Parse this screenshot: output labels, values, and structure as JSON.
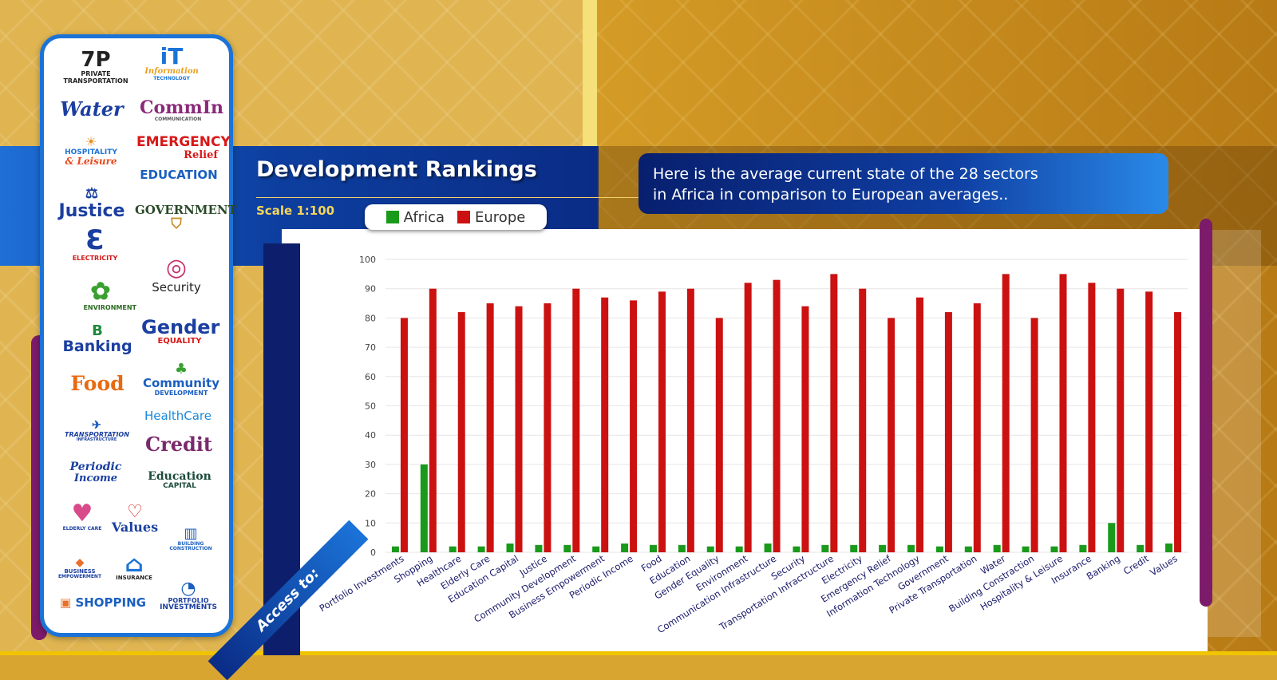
{
  "title": "Development Rankings",
  "scale_label": "Scale 1:100",
  "info": {
    "line1": "Here is the average current state of the 28 sectors",
    "line2": "in Africa in comparison to European averages.."
  },
  "access_label": "Access to:",
  "colors": {
    "africa": "#1a9a1a",
    "europe": "#cc1111",
    "accent_blue": "#1b73d8",
    "purple": "#7c1b6a"
  },
  "logos": {
    "private_transportation": "PRIVATE TRANSPORTATION",
    "information_technology": "Information",
    "information_technology_sub": "TECHNOLOGY",
    "water": "Water",
    "commin": "CommIn",
    "commin_sub": "COMMUNICATION",
    "hospitality": "HOSPITALITY",
    "hospitality_sub": "& Leisure",
    "emergency": "EMERGENCY",
    "emergency_sub": "Relief",
    "education": "EDUCATION",
    "justice": "Justice",
    "government": "GOVERNMENT",
    "electricity": "ELECTRICITY",
    "security": "Security",
    "environment": "ENVIRONMENT",
    "banking": "Banking",
    "gender": "Gender",
    "gender_sub": "EQUALITY",
    "food": "Food",
    "community": "Community",
    "community_sub": "DEVELOPMENT",
    "transportation": "TRANSPORTATION",
    "transportation_sub": "INFRASTRUCTURE",
    "healthcare": "HealthCare",
    "credit": "Credit",
    "periodic": "Periodic",
    "periodic_sub": "Income",
    "education_capital": "Education",
    "education_capital_sub": "CAPITAL",
    "elderly": "ELDERLY CARE",
    "values": "Values",
    "building": "BUILDING CONSTRUCTION",
    "business": "BUSINESS",
    "business_sub": "EMPOWERMENT",
    "insurance": "INSURANCE",
    "shopping": "SHOPPING",
    "portfolio": "PORTFOLIO",
    "portfolio_sub": "INVESTMENTS"
  },
  "chart_data": {
    "type": "bar",
    "ylim": [
      0,
      100
    ],
    "yticks": [
      0,
      10,
      20,
      30,
      40,
      50,
      60,
      70,
      80,
      90,
      100
    ],
    "grid": true,
    "legend_position": "top-left",
    "categories": [
      "Portfolio Investments",
      "Shopping",
      "Healthcare",
      "Elderly Care",
      "Education Capital",
      "Justice",
      "Community Development",
      "Business Empowerment",
      "Periodic Income",
      "Food",
      "Education",
      "Gender Equality",
      "Environment",
      "Communication Infrastructure",
      "Security",
      "Transportation Infractructure",
      "Electricity",
      "Emergency Relief",
      "Information Technology",
      "Government",
      "Private Transportation",
      "Water",
      "Building Constraction",
      "Hospitality & Leisure",
      "Insurance",
      "Banking",
      "Credit",
      "Values"
    ],
    "series": [
      {
        "name": "Africa",
        "color": "#1a9a1a",
        "values": [
          2,
          30,
          2,
          2,
          3,
          2.5,
          2.5,
          2,
          3,
          2.5,
          2.5,
          2,
          2,
          3,
          2,
          2.5,
          2.5,
          2.5,
          2.5,
          2,
          2,
          2.5,
          2,
          2,
          2.5,
          10,
          2.5,
          3
        ]
      },
      {
        "name": "Europe",
        "color": "#cc1111",
        "values": [
          80,
          90,
          82,
          85,
          84,
          85,
          90,
          87,
          86,
          89,
          90,
          80,
          92,
          93,
          84,
          95,
          90,
          80,
          87,
          82,
          85,
          95,
          80,
          95,
          92,
          90,
          89,
          82
        ]
      }
    ]
  }
}
